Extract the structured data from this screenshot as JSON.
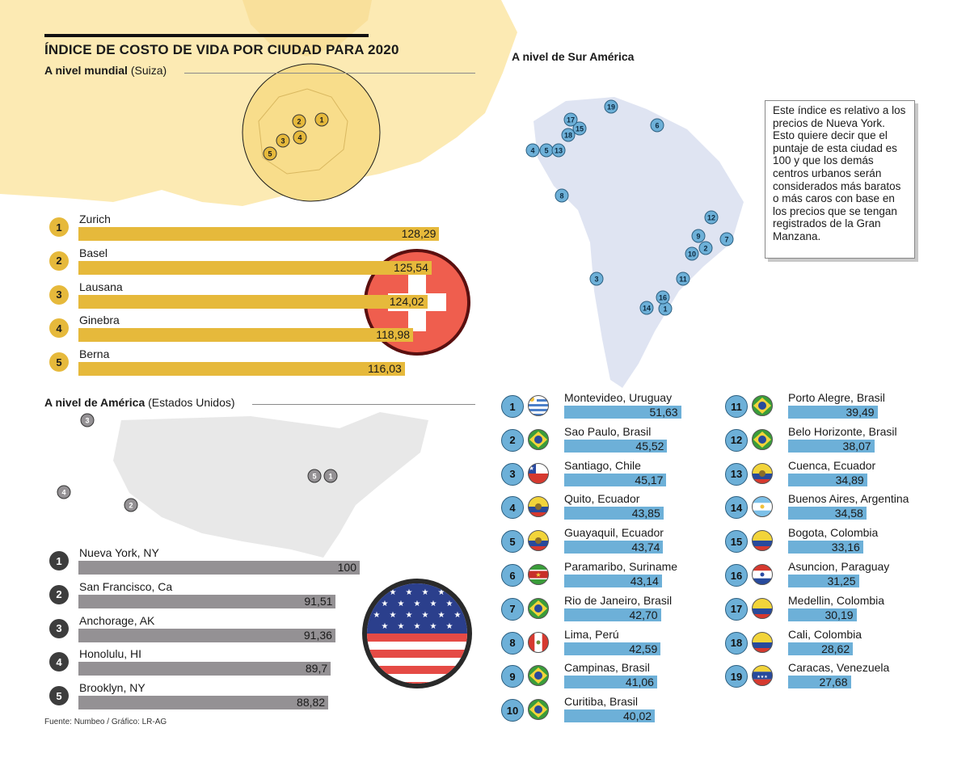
{
  "title": "ÍNDICE DE COSTO DE VIDA POR CIUDAD PARA 2020",
  "world": {
    "heading": "A nivel mundial",
    "sub": "(Suiza)"
  },
  "america": {
    "heading": "A nivel de América",
    "sub": "(Estados Unidos)"
  },
  "south": {
    "heading": "A nivel de Sur América"
  },
  "note": "Este índice es relativo a los precios de Nueva York. Esto quiere decir que el puntaje de esta ciudad es 100 y que los demás centros urbanos serán considerados más baratos o más caros con base en los precios que se tengan registrados de la Gran Manzana.",
  "footer": "Fuente: Numbeo / Gráfico: LR-AG",
  "colors": {
    "swiss": "#e6b93b",
    "usa": "#949194",
    "south": "#6db0d8",
    "swiss_map": "#fbe6a6",
    "usa_map": "#e8e8e8",
    "south_map": "#dfe4f2",
    "swiss_flag": "#ef5e4e"
  },
  "chart_data": [
    {
      "type": "bar",
      "title": "A nivel mundial (Suiza)",
      "ranks": [
        "1",
        "2",
        "3",
        "4",
        "5"
      ],
      "categories": [
        "Zurich",
        "Basel",
        "Lausana",
        "Ginebra",
        "Berna"
      ],
      "values": [
        128.29,
        125.54,
        124.02,
        118.98,
        116.03
      ],
      "labels": [
        "128,29",
        "125,54",
        "124,02",
        "118,98",
        "116,03"
      ],
      "map_markers": [
        "1",
        "2",
        "3",
        "4",
        "5"
      ]
    },
    {
      "type": "bar",
      "title": "A nivel de América (Estados Unidos)",
      "ranks": [
        "1",
        "2",
        "3",
        "4",
        "5"
      ],
      "categories": [
        "Nueva York, NY",
        "San Francisco, Ca",
        "Anchorage, AK",
        "Honolulu, HI",
        "Brooklyn, NY"
      ],
      "values": [
        100,
        91.51,
        91.36,
        89.7,
        88.82
      ],
      "labels": [
        "100",
        "91,51",
        "91,36",
        "89,7",
        "88,82"
      ],
      "map_markers": [
        "1",
        "2",
        "3",
        "4",
        "5"
      ]
    },
    {
      "type": "bar",
      "title": "A nivel de Sur América",
      "ranks": [
        "1",
        "2",
        "3",
        "4",
        "5",
        "6",
        "7",
        "8",
        "9",
        "10",
        "11",
        "12",
        "13",
        "14",
        "15",
        "16",
        "17",
        "18",
        "19"
      ],
      "categories": [
        "Montevideo, Uruguay",
        "Sao Paulo, Brasil",
        "Santiago, Chile",
        "Quito, Ecuador",
        "Guayaquil, Ecuador",
        "Paramaribo, Suriname",
        "Rio de Janeiro, Brasil",
        "Lima, Perú",
        "Campinas, Brasil",
        "Curitiba, Brasil",
        "Porto Alegre, Brasil",
        "Belo Horizonte, Brasil",
        "Cuenca, Ecuador",
        "Buenos Aires, Argentina",
        "Bogota, Colombia",
        "Asuncion, Paraguay",
        "Medellin, Colombia",
        "Cali, Colombia",
        "Caracas, Venezuela"
      ],
      "values": [
        51.63,
        45.52,
        45.17,
        43.85,
        43.74,
        43.14,
        42.7,
        42.59,
        41.06,
        40.02,
        39.49,
        38.07,
        34.89,
        34.58,
        33.16,
        31.25,
        30.19,
        28.62,
        27.68
      ],
      "labels": [
        "51,63",
        "45,52",
        "45,17",
        "43,85",
        "43,74",
        "43,14",
        "42,70",
        "42,59",
        "41,06",
        "40,02",
        "39,49",
        "38,07",
        "34,89",
        "34,58",
        "33,16",
        "31,25",
        "30,19",
        "28,62",
        "27,68"
      ],
      "flags": [
        "uruguay",
        "brazil",
        "chile",
        "ecuador",
        "ecuador",
        "suriname",
        "brazil",
        "peru",
        "brazil",
        "brazil",
        "brazil",
        "brazil",
        "ecuador",
        "argentina",
        "colombia",
        "paraguay",
        "colombia",
        "colombia",
        "venezuela"
      ],
      "map_markers": [
        "1",
        "2",
        "3",
        "4",
        "5",
        "6",
        "7",
        "8",
        "9",
        "10",
        "11",
        "12",
        "13",
        "14",
        "15",
        "16",
        "17",
        "18",
        "19"
      ]
    }
  ]
}
